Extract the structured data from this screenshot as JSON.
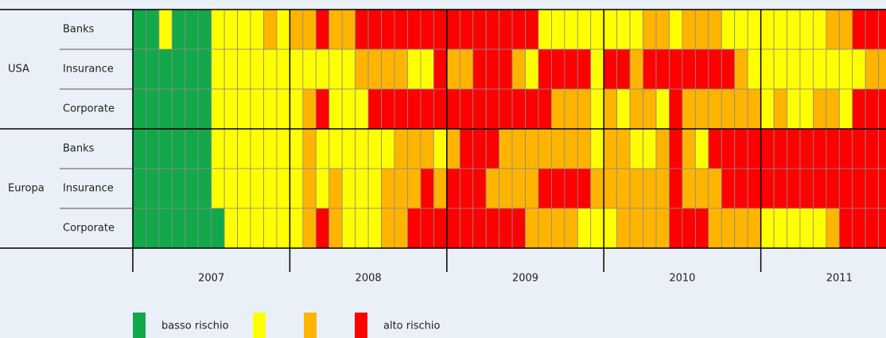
{
  "chart_data": {
    "type": "heatmap",
    "years": [
      "2007",
      "2008",
      "2009",
      "2010",
      "2011"
    ],
    "groups": [
      {
        "name": "USA",
        "rows": [
          {
            "name": "Banks",
            "values": [
              1,
              1,
              2,
              1,
              1,
              1,
              2,
              2,
              2,
              2,
              3,
              2,
              3,
              3,
              4,
              3,
              3,
              4,
              4,
              4,
              4,
              4,
              4,
              4,
              4,
              4,
              4,
              4,
              4,
              4,
              4,
              2,
              2,
              2,
              2,
              2,
              2,
              2,
              2,
              3,
              3,
              2,
              3,
              3,
              3,
              2,
              2,
              2,
              2,
              2,
              2,
              2,
              2,
              3,
              3,
              4,
              4,
              4
            ]
          },
          {
            "name": "Insurance",
            "values": [
              1,
              1,
              1,
              1,
              1,
              1,
              2,
              2,
              2,
              2,
              2,
              2,
              2,
              2,
              2,
              2,
              2,
              3,
              3,
              3,
              3,
              2,
              2,
              4,
              3,
              3,
              4,
              4,
              4,
              3,
              2,
              4,
              4,
              4,
              4,
              2,
              4,
              4,
              3,
              4,
              4,
              4,
              4,
              4,
              4,
              4,
              3,
              2,
              2,
              2,
              2,
              2,
              2,
              2,
              2,
              2,
              3,
              3
            ]
          },
          {
            "name": "Corporate",
            "values": [
              1,
              1,
              1,
              1,
              1,
              1,
              2,
              2,
              2,
              2,
              2,
              2,
              2,
              3,
              4,
              2,
              2,
              2,
              4,
              4,
              4,
              4,
              4,
              4,
              4,
              4,
              4,
              4,
              4,
              4,
              4,
              4,
              3,
              3,
              3,
              2,
              3,
              2,
              3,
              3,
              2,
              4,
              3,
              3,
              3,
              3,
              3,
              3,
              2,
              3,
              2,
              2,
              3,
              3,
              2,
              4,
              4,
              4
            ]
          }
        ]
      },
      {
        "name": "Europa",
        "rows": [
          {
            "name": "Banks",
            "values": [
              1,
              1,
              1,
              1,
              1,
              1,
              2,
              2,
              2,
              2,
              2,
              2,
              2,
              3,
              2,
              2,
              2,
              2,
              2,
              2,
              3,
              3,
              3,
              2,
              3,
              4,
              4,
              4,
              3,
              3,
              3,
              3,
              3,
              3,
              3,
              2,
              3,
              3,
              2,
              2,
              3,
              4,
              3,
              2,
              4,
              4,
              4,
              4,
              4,
              4,
              4,
              4,
              4,
              4,
              4,
              4,
              4,
              4
            ]
          },
          {
            "name": "Insurance",
            "values": [
              1,
              1,
              1,
              1,
              1,
              1,
              2,
              2,
              2,
              2,
              2,
              2,
              2,
              3,
              2,
              3,
              2,
              2,
              2,
              3,
              3,
              3,
              4,
              3,
              4,
              4,
              4,
              3,
              3,
              3,
              3,
              4,
              4,
              4,
              4,
              3,
              3,
              3,
              3,
              3,
              3,
              4,
              3,
              3,
              3,
              4,
              4,
              4,
              4,
              4,
              4,
              4,
              4,
              4,
              4,
              4,
              4,
              4
            ]
          },
          {
            "name": "Corporate",
            "values": [
              1,
              1,
              1,
              1,
              1,
              1,
              1,
              2,
              2,
              2,
              2,
              2,
              2,
              3,
              4,
              3,
              2,
              2,
              2,
              3,
              3,
              4,
              4,
              4,
              4,
              4,
              4,
              4,
              4,
              4,
              3,
              3,
              3,
              3,
              2,
              2,
              2,
              3,
              3,
              3,
              3,
              4,
              4,
              4,
              3,
              3,
              3,
              3,
              2,
              2,
              2,
              2,
              2,
              3,
              4,
              4,
              4,
              4
            ]
          }
        ]
      }
    ],
    "legend": [
      {
        "label": "basso rischio",
        "color": "#13a84a"
      },
      {
        "color": "#ffff00"
      },
      {
        "color": "#ffb400"
      },
      {
        "label": "alto rischio",
        "color": "#ff0000"
      }
    ]
  }
}
